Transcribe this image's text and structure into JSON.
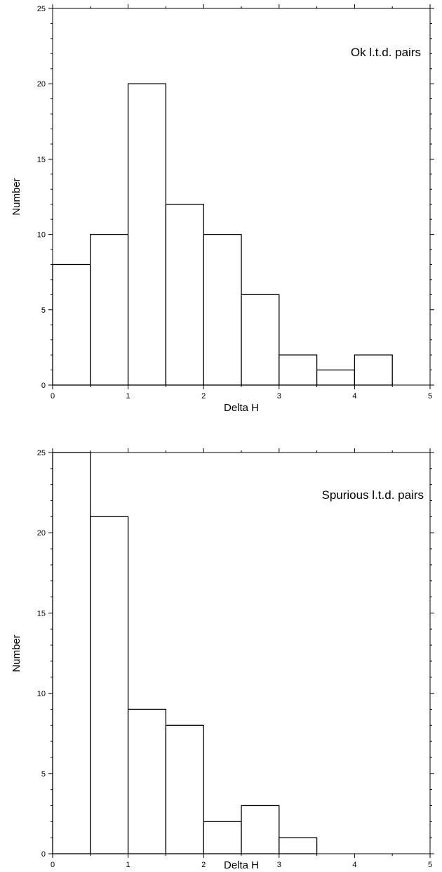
{
  "chart_data": [
    {
      "type": "bar",
      "title": "Ok l.t.d. pairs",
      "xlabel": "Delta H",
      "ylabel": "Number",
      "bin_edges": [
        0,
        0.5,
        1,
        1.5,
        2,
        2.5,
        3,
        3.5,
        4,
        4.5
      ],
      "values": [
        8,
        10,
        20,
        12,
        10,
        6,
        2,
        1,
        2
      ],
      "xlim": [
        0,
        5
      ],
      "ylim": [
        0,
        25
      ],
      "xticks": [
        "0",
        "1",
        "2",
        "3",
        "4",
        "5"
      ],
      "yticks": [
        "0",
        "5",
        "10",
        "15",
        "20",
        "25"
      ],
      "grid": false,
      "legend": "none"
    },
    {
      "type": "bar",
      "title": "Spurious l.t.d. pairs",
      "xlabel": "Delta H",
      "ylabel": "Number",
      "bin_edges": [
        0,
        0.5,
        1,
        1.5,
        2,
        2.5,
        3,
        3.5
      ],
      "values": [
        25,
        21,
        9,
        8,
        2,
        3,
        1
      ],
      "xlim": [
        0,
        5
      ],
      "ylim": [
        0,
        25
      ],
      "xticks": [
        "0",
        "1",
        "2",
        "3",
        "4",
        "5"
      ],
      "yticks": [
        "0",
        "5",
        "10",
        "15",
        "20",
        "25"
      ],
      "grid": false,
      "legend": "none"
    }
  ]
}
